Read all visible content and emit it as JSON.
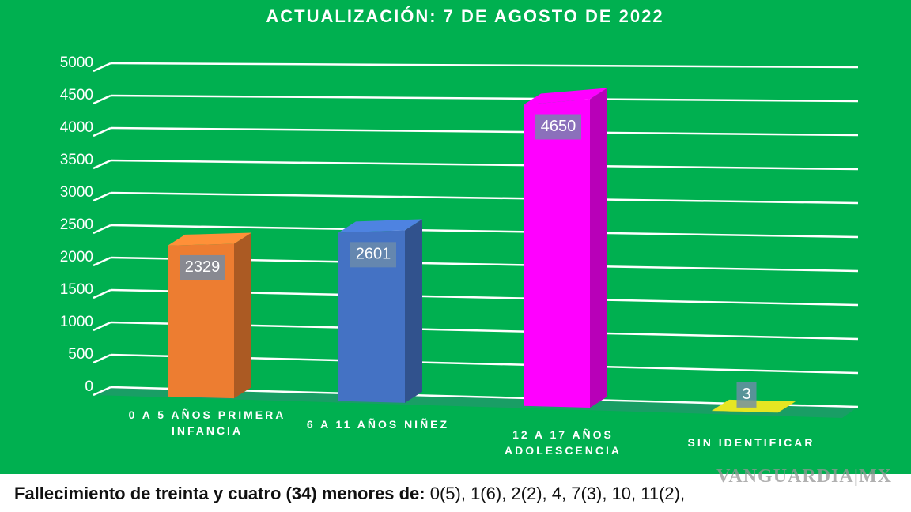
{
  "chart_data": {
    "type": "bar3d",
    "title": "ACTUALIZACIÓN: 7 DE AGOSTO DE 2022",
    "categories": [
      "0 A 5 AÑOS PRIMERA INFANCIA",
      "6 A 11 AÑOS NIÑEZ",
      "12 A 17 AÑOS ADOLESCENCIA",
      "SIN IDENTIFICAR"
    ],
    "values": [
      2329,
      2601,
      4650,
      3
    ],
    "colors": [
      "#ed7d31",
      "#4472c4",
      "#ff00ff",
      "#c8c81e"
    ],
    "ylim": [
      0,
      5000
    ],
    "yticks": [
      0,
      500,
      1000,
      1500,
      2000,
      2500,
      3000,
      3500,
      4000,
      4500,
      5000
    ],
    "grid": true
  },
  "footer": {
    "bold": "Fallecimiento de treinta y cuatro (34) menores de:",
    "text": "0(5), 1(6), 2(2), 4, 7(3), 10, 11(2),"
  },
  "watermark": {
    "name": "VANGUARDIA",
    "suffix": "MX"
  }
}
